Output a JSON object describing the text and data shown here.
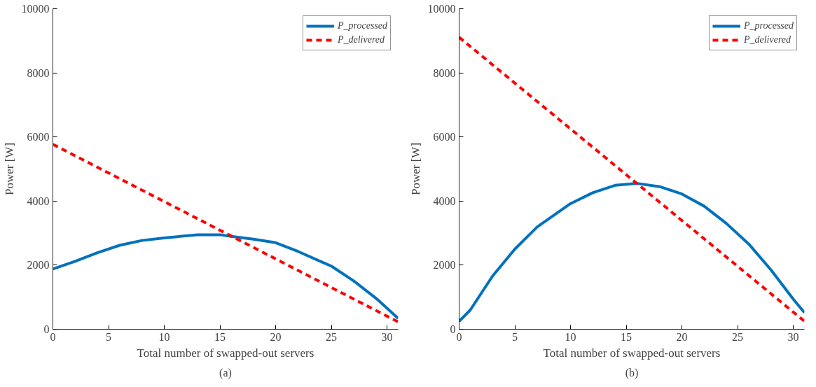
{
  "chart_data": [
    {
      "type": "line",
      "xlabel": "Total number of swapped-out servers",
      "ylabel": "Power [W]",
      "annotations": [
        "(a)"
      ],
      "xlim": [
        0,
        31
      ],
      "xticks": [
        0,
        5,
        10,
        15,
        20,
        25,
        30
      ],
      "ylim": [
        0,
        10000
      ],
      "yticks": [
        0,
        2000,
        4000,
        6000,
        8000,
        10000
      ],
      "legend": "top right",
      "grid": false,
      "series": [
        {
          "name": "P_processed",
          "color": "#0072bd",
          "line_style": "solid",
          "x": [
            0,
            2,
            4,
            6,
            8,
            10,
            13,
            15,
            16,
            18,
            20,
            22,
            24,
            25,
            27,
            29,
            31
          ],
          "values": [
            1880,
            2120,
            2390,
            2620,
            2770,
            2850,
            2950,
            2950,
            2900,
            2810,
            2700,
            2430,
            2120,
            1970,
            1510,
            970,
            340
          ]
        },
        {
          "name": "P_delivered",
          "color": "#ff0000",
          "line_style": "dashed",
          "x": [
            0,
            31
          ],
          "values": [
            5770,
            230
          ]
        }
      ]
    },
    {
      "type": "line",
      "xlabel": "Total number of swapped-out servers",
      "ylabel": "Power [W]",
      "annotations": [
        "(b)"
      ],
      "xlim": [
        0,
        31
      ],
      "xticks": [
        0,
        5,
        10,
        15,
        20,
        25,
        30
      ],
      "ylim": [
        0,
        10000
      ],
      "yticks": [
        0,
        2000,
        4000,
        6000,
        8000,
        10000
      ],
      "legend": "top right",
      "grid": false,
      "series": [
        {
          "name": "P_processed",
          "color": "#0072bd",
          "line_style": "solid",
          "x": [
            0,
            1,
            3,
            5,
            7,
            10,
            12,
            14,
            16,
            18,
            20,
            22,
            24,
            26,
            28,
            30,
            31
          ],
          "values": [
            250,
            600,
            1660,
            2500,
            3190,
            3920,
            4260,
            4490,
            4550,
            4450,
            4220,
            3840,
            3300,
            2660,
            1850,
            940,
            520
          ]
        },
        {
          "name": "P_delivered",
          "color": "#ff0000",
          "line_style": "dashed",
          "x": [
            0,
            31
          ],
          "values": [
            9110,
            250
          ]
        }
      ]
    }
  ]
}
